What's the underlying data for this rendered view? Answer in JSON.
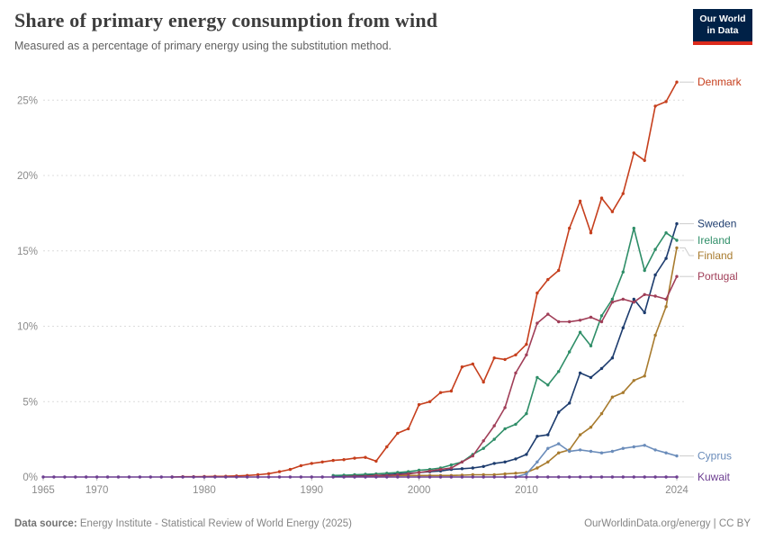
{
  "header": {
    "title": "Share of primary energy consumption from wind",
    "subtitle": "Measured as a percentage of primary energy using the substitution method."
  },
  "logo": {
    "line1": "Our World",
    "line2": "in Data"
  },
  "footer": {
    "source_label": "Data source:",
    "source_text": "Energy Institute - Statistical Review of World Energy (2025)",
    "credit": "OurWorldinData.org/energy | CC BY"
  },
  "chart_data": {
    "type": "line",
    "title": "Share of primary energy consumption from wind",
    "xlabel": "",
    "ylabel": "",
    "unit": "%",
    "xlim": [
      1965,
      2024
    ],
    "ylim": [
      0,
      26.5
    ],
    "grid": "dashed-horizontal",
    "legend_position": "right-edge-labels",
    "x_tick_labels": [
      "1965",
      "1970",
      "1980",
      "1990",
      "2000",
      "2010",
      "2024"
    ],
    "x_ticks": [
      1965,
      1970,
      1980,
      1990,
      2000,
      2010,
      2024
    ],
    "y_tick_labels": [
      "0%",
      "5%",
      "10%",
      "15%",
      "20%",
      "25%"
    ],
    "y_ticks": [
      0,
      5,
      10,
      15,
      20,
      25
    ],
    "series": [
      {
        "name": "Denmark",
        "color": "#c63f1d",
        "points": [
          [
            1977,
            0
          ],
          [
            1978,
            0.02
          ],
          [
            1979,
            0.02
          ],
          [
            1980,
            0.03
          ],
          [
            1981,
            0.04
          ],
          [
            1982,
            0.05
          ],
          [
            1983,
            0.07
          ],
          [
            1984,
            0.1
          ],
          [
            1985,
            0.15
          ],
          [
            1986,
            0.22
          ],
          [
            1987,
            0.35
          ],
          [
            1988,
            0.5
          ],
          [
            1989,
            0.75
          ],
          [
            1990,
            0.9
          ],
          [
            1991,
            1.0
          ],
          [
            1992,
            1.1
          ],
          [
            1993,
            1.15
          ],
          [
            1994,
            1.25
          ],
          [
            1995,
            1.3
          ],
          [
            1996,
            1.05
          ],
          [
            1997,
            2.0
          ],
          [
            1998,
            2.9
          ],
          [
            1999,
            3.2
          ],
          [
            2000,
            4.8
          ],
          [
            2001,
            5.0
          ],
          [
            2002,
            5.6
          ],
          [
            2003,
            5.7
          ],
          [
            2004,
            7.3
          ],
          [
            2005,
            7.5
          ],
          [
            2006,
            6.3
          ],
          [
            2007,
            7.9
          ],
          [
            2008,
            7.8
          ],
          [
            2009,
            8.1
          ],
          [
            2010,
            8.8
          ],
          [
            2011,
            12.2
          ],
          [
            2012,
            13.1
          ],
          [
            2013,
            13.7
          ],
          [
            2014,
            16.5
          ],
          [
            2015,
            18.3
          ],
          [
            2016,
            16.2
          ],
          [
            2017,
            18.5
          ],
          [
            2018,
            17.6
          ],
          [
            2019,
            18.8
          ],
          [
            2020,
            21.5
          ],
          [
            2021,
            21.0
          ],
          [
            2022,
            24.6
          ],
          [
            2023,
            24.9
          ],
          [
            2024,
            26.2
          ]
        ]
      },
      {
        "name": "Sweden",
        "color": "#1d3c6e",
        "points": [
          [
            1992,
            0.05
          ],
          [
            1993,
            0.06
          ],
          [
            1994,
            0.08
          ],
          [
            1995,
            0.1
          ],
          [
            1996,
            0.1
          ],
          [
            1997,
            0.15
          ],
          [
            1998,
            0.2
          ],
          [
            1999,
            0.25
          ],
          [
            2000,
            0.3
          ],
          [
            2001,
            0.35
          ],
          [
            2002,
            0.4
          ],
          [
            2003,
            0.5
          ],
          [
            2004,
            0.55
          ],
          [
            2005,
            0.6
          ],
          [
            2006,
            0.7
          ],
          [
            2007,
            0.9
          ],
          [
            2008,
            1.0
          ],
          [
            2009,
            1.2
          ],
          [
            2010,
            1.5
          ],
          [
            2011,
            2.7
          ],
          [
            2012,
            2.8
          ],
          [
            2013,
            4.3
          ],
          [
            2014,
            4.9
          ],
          [
            2015,
            6.9
          ],
          [
            2016,
            6.6
          ],
          [
            2017,
            7.2
          ],
          [
            2018,
            7.9
          ],
          [
            2019,
            9.9
          ],
          [
            2020,
            11.8
          ],
          [
            2021,
            10.9
          ],
          [
            2022,
            13.4
          ],
          [
            2023,
            14.5
          ],
          [
            2024,
            16.8
          ]
        ]
      },
      {
        "name": "Ireland",
        "color": "#2f8e68",
        "points": [
          [
            1992,
            0.1
          ],
          [
            1993,
            0.12
          ],
          [
            1994,
            0.15
          ],
          [
            1995,
            0.18
          ],
          [
            1996,
            0.2
          ],
          [
            1997,
            0.25
          ],
          [
            1998,
            0.3
          ],
          [
            1999,
            0.35
          ],
          [
            2000,
            0.45
          ],
          [
            2001,
            0.5
          ],
          [
            2002,
            0.6
          ],
          [
            2003,
            0.8
          ],
          [
            2004,
            1.0
          ],
          [
            2005,
            1.5
          ],
          [
            2006,
            1.9
          ],
          [
            2007,
            2.5
          ],
          [
            2008,
            3.2
          ],
          [
            2009,
            3.5
          ],
          [
            2010,
            4.2
          ],
          [
            2011,
            6.6
          ],
          [
            2012,
            6.1
          ],
          [
            2013,
            7.0
          ],
          [
            2014,
            8.3
          ],
          [
            2015,
            9.6
          ],
          [
            2016,
            8.7
          ],
          [
            2017,
            10.7
          ],
          [
            2018,
            11.8
          ],
          [
            2019,
            13.6
          ],
          [
            2020,
            16.5
          ],
          [
            2021,
            13.7
          ],
          [
            2022,
            15.1
          ],
          [
            2023,
            16.2
          ],
          [
            2024,
            15.7
          ]
        ]
      },
      {
        "name": "Finland",
        "color": "#a87b2e",
        "points": [
          [
            1993,
            0.02
          ],
          [
            1994,
            0.03
          ],
          [
            1995,
            0.05
          ],
          [
            1996,
            0.06
          ],
          [
            1997,
            0.08
          ],
          [
            1998,
            0.09
          ],
          [
            1999,
            0.1
          ],
          [
            2000,
            0.1
          ],
          [
            2001,
            0.1
          ],
          [
            2002,
            0.1
          ],
          [
            2003,
            0.1
          ],
          [
            2004,
            0.12
          ],
          [
            2005,
            0.15
          ],
          [
            2006,
            0.15
          ],
          [
            2007,
            0.15
          ],
          [
            2008,
            0.2
          ],
          [
            2009,
            0.25
          ],
          [
            2010,
            0.3
          ],
          [
            2011,
            0.6
          ],
          [
            2012,
            1.0
          ],
          [
            2013,
            1.6
          ],
          [
            2014,
            1.8
          ],
          [
            2015,
            2.8
          ],
          [
            2016,
            3.3
          ],
          [
            2017,
            4.2
          ],
          [
            2018,
            5.3
          ],
          [
            2019,
            5.6
          ],
          [
            2020,
            6.4
          ],
          [
            2021,
            6.7
          ],
          [
            2022,
            9.4
          ],
          [
            2023,
            11.3
          ],
          [
            2024,
            15.2
          ]
        ]
      },
      {
        "name": "Portugal",
        "color": "#a03e58",
        "points": [
          [
            1993,
            0.02
          ],
          [
            1994,
            0.05
          ],
          [
            1995,
            0.05
          ],
          [
            1996,
            0.1
          ],
          [
            1997,
            0.1
          ],
          [
            1998,
            0.15
          ],
          [
            1999,
            0.2
          ],
          [
            2000,
            0.3
          ],
          [
            2001,
            0.4
          ],
          [
            2002,
            0.5
          ],
          [
            2003,
            0.6
          ],
          [
            2004,
            1.0
          ],
          [
            2005,
            1.4
          ],
          [
            2006,
            2.4
          ],
          [
            2007,
            3.4
          ],
          [
            2008,
            4.6
          ],
          [
            2009,
            6.9
          ],
          [
            2010,
            8.1
          ],
          [
            2011,
            10.2
          ],
          [
            2012,
            10.8
          ],
          [
            2013,
            10.3
          ],
          [
            2014,
            10.3
          ],
          [
            2015,
            10.4
          ],
          [
            2016,
            10.6
          ],
          [
            2017,
            10.3
          ],
          [
            2018,
            11.6
          ],
          [
            2019,
            11.8
          ],
          [
            2020,
            11.6
          ],
          [
            2021,
            12.1
          ],
          [
            2022,
            12.0
          ],
          [
            2023,
            11.8
          ],
          [
            2024,
            13.3
          ]
        ]
      },
      {
        "name": "Cyprus",
        "color": "#6a8cba",
        "points": [
          [
            2009,
            0.0
          ],
          [
            2010,
            0.2
          ],
          [
            2011,
            1.0
          ],
          [
            2012,
            1.9
          ],
          [
            2013,
            2.2
          ],
          [
            2014,
            1.7
          ],
          [
            2015,
            1.8
          ],
          [
            2016,
            1.7
          ],
          [
            2017,
            1.6
          ],
          [
            2018,
            1.7
          ],
          [
            2019,
            1.9
          ],
          [
            2020,
            2.0
          ],
          [
            2021,
            2.1
          ],
          [
            2022,
            1.8
          ],
          [
            2023,
            1.6
          ],
          [
            2024,
            1.4
          ]
        ]
      },
      {
        "name": "Kuwait",
        "color": "#6d3e91",
        "points": [
          [
            1965,
            0
          ],
          [
            1966,
            0
          ],
          [
            1967,
            0
          ],
          [
            1968,
            0
          ],
          [
            1969,
            0
          ],
          [
            1970,
            0
          ],
          [
            1971,
            0
          ],
          [
            1972,
            0
          ],
          [
            1973,
            0
          ],
          [
            1974,
            0
          ],
          [
            1975,
            0
          ],
          [
            1976,
            0
          ],
          [
            1977,
            0
          ],
          [
            1978,
            0
          ],
          [
            1979,
            0
          ],
          [
            1980,
            0
          ],
          [
            1981,
            0
          ],
          [
            1982,
            0
          ],
          [
            1983,
            0
          ],
          [
            1984,
            0
          ],
          [
            1985,
            0
          ],
          [
            1986,
            0
          ],
          [
            1987,
            0
          ],
          [
            1988,
            0
          ],
          [
            1989,
            0
          ],
          [
            1990,
            0
          ],
          [
            1991,
            0
          ],
          [
            1992,
            0
          ],
          [
            1993,
            0
          ],
          [
            1994,
            0
          ],
          [
            1995,
            0
          ],
          [
            1996,
            0
          ],
          [
            1997,
            0
          ],
          [
            1998,
            0
          ],
          [
            1999,
            0
          ],
          [
            2000,
            0
          ],
          [
            2001,
            0
          ],
          [
            2002,
            0
          ],
          [
            2003,
            0
          ],
          [
            2004,
            0
          ],
          [
            2005,
            0
          ],
          [
            2006,
            0
          ],
          [
            2007,
            0
          ],
          [
            2008,
            0
          ],
          [
            2009,
            0
          ],
          [
            2010,
            0
          ],
          [
            2011,
            0
          ],
          [
            2012,
            0
          ],
          [
            2013,
            0
          ],
          [
            2014,
            0
          ],
          [
            2015,
            0
          ],
          [
            2016,
            0
          ],
          [
            2017,
            0
          ],
          [
            2018,
            0
          ],
          [
            2019,
            0
          ],
          [
            2020,
            0
          ],
          [
            2021,
            0
          ],
          [
            2022,
            0
          ],
          [
            2023,
            0
          ],
          [
            2024,
            0
          ]
        ]
      }
    ]
  }
}
